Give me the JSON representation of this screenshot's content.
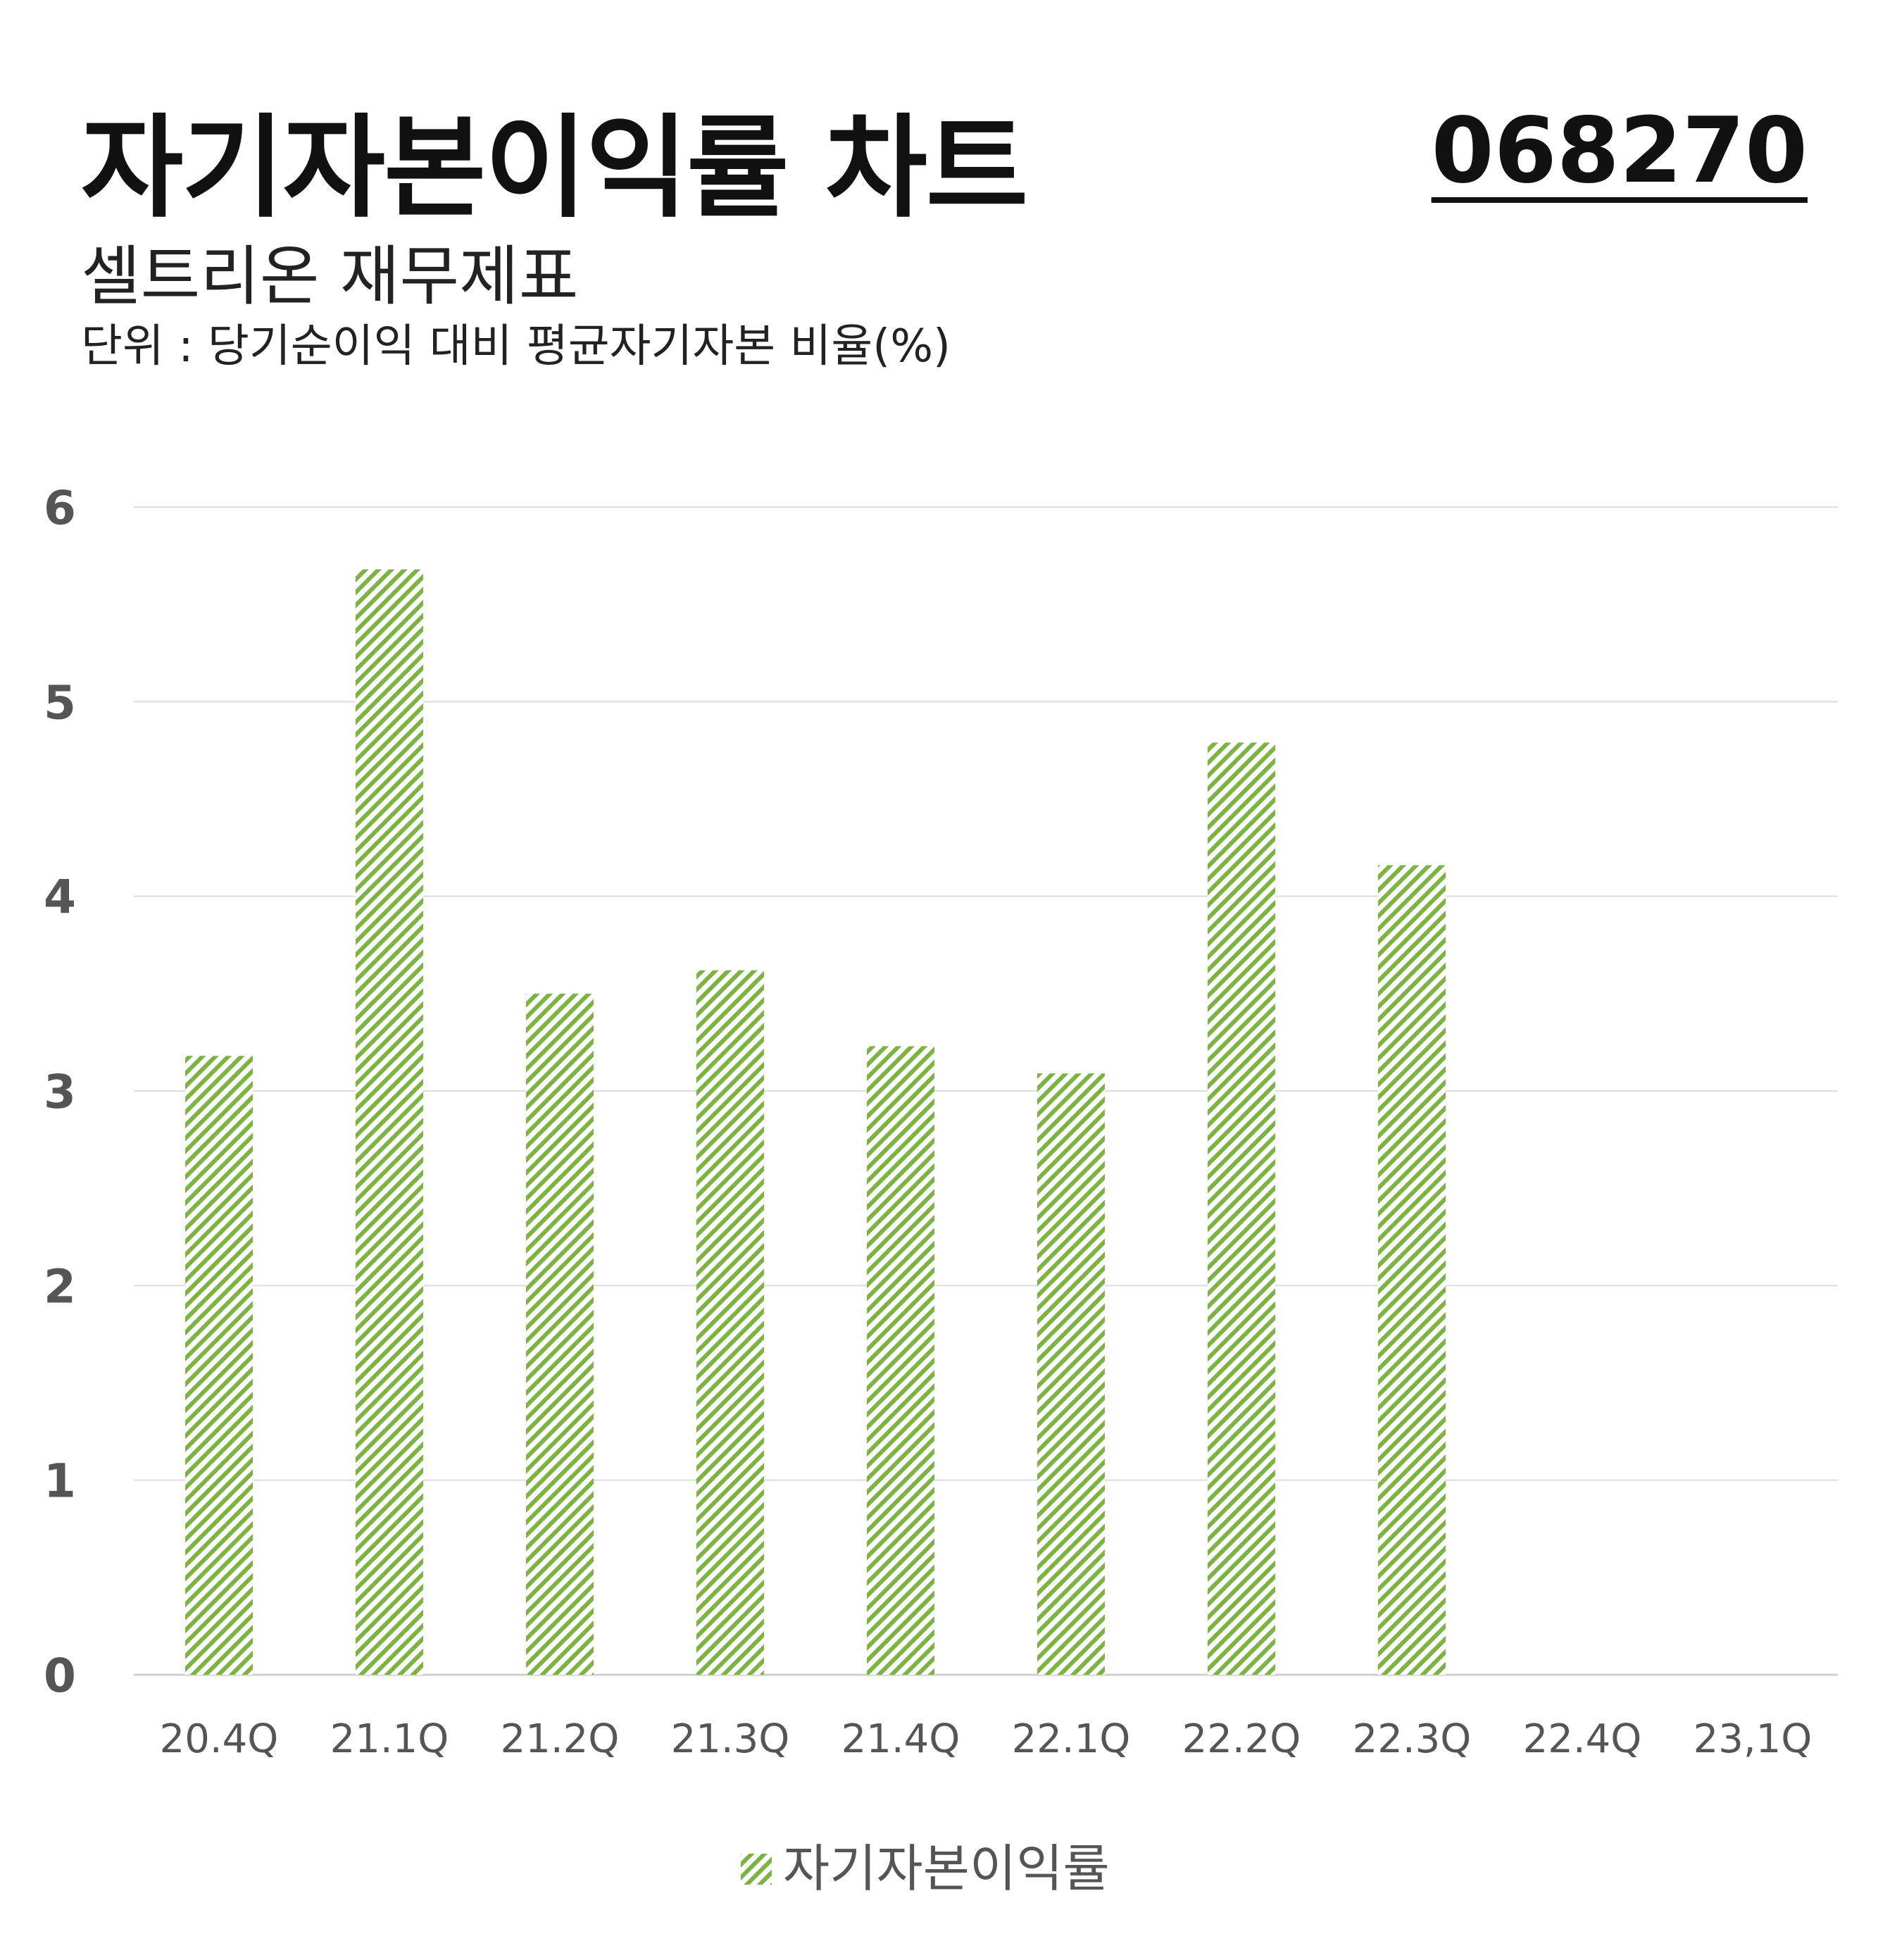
{
  "header": {
    "title": "자기자본이익률 차트",
    "code": "068270",
    "subtitle": "셀트리온 재무제표",
    "unit": "단위 : 당기순이익 대비 평균자기자본 비율(%)"
  },
  "chart_data": {
    "type": "bar",
    "categories": [
      "20.4Q",
      "21.1Q",
      "21.2Q",
      "21.3Q",
      "21.4Q",
      "22.1Q",
      "22.2Q",
      "22.3Q",
      "22.4Q",
      "23,1Q"
    ],
    "series": [
      {
        "name": "자기자본이익률",
        "values": [
          3.18,
          5.68,
          3.5,
          3.62,
          3.23,
          3.09,
          4.79,
          4.16,
          null,
          null
        ],
        "color": "#7cb342",
        "pattern": "diagonal-hatch"
      }
    ],
    "yticks": [
      0,
      1,
      2,
      3,
      4,
      5,
      6
    ],
    "ylim": [
      0,
      6
    ],
    "grid": true,
    "legend_position": "bottom-center"
  }
}
